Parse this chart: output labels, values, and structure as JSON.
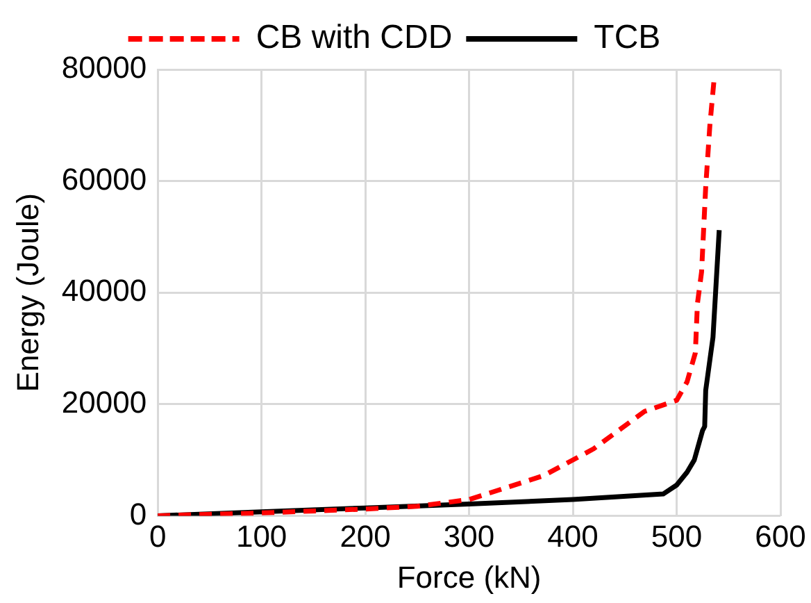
{
  "chart_data": {
    "type": "line",
    "xlabel": "Force (kN)",
    "ylabel": "Energy (Joule)",
    "xlim": [
      0,
      600
    ],
    "xticks": [
      0,
      100,
      200,
      300,
      400,
      500,
      600
    ],
    "ylim": [
      0,
      80000
    ],
    "yticks": [
      0,
      20000,
      40000,
      60000,
      80000
    ],
    "grid": true,
    "legend": "top",
    "marker": "none",
    "series": [
      {
        "name": "CB with CDD",
        "color": "#ff0000",
        "line_style": "dashed",
        "x": [
          0,
          100,
          200,
          250,
          300,
          372,
          420,
          469,
          500,
          510,
          518,
          520,
          524,
          528,
          532,
          536
        ],
        "values": [
          0,
          500,
          1200,
          1700,
          2900,
          7200,
          12000,
          18700,
          20700,
          24000,
          29200,
          38000,
          43700,
          59000,
          70000,
          78100
        ]
      },
      {
        "name": "TCB",
        "color": "#000000",
        "line_style": "solid",
        "x": [
          0,
          100,
          200,
          300,
          400,
          487,
          500,
          510,
          517,
          525,
          527,
          528,
          535,
          541
        ],
        "values": [
          0,
          700,
          1400,
          2100,
          2900,
          3900,
          5500,
          7800,
          10000,
          15300,
          16000,
          22500,
          32000,
          51200
        ]
      }
    ]
  }
}
